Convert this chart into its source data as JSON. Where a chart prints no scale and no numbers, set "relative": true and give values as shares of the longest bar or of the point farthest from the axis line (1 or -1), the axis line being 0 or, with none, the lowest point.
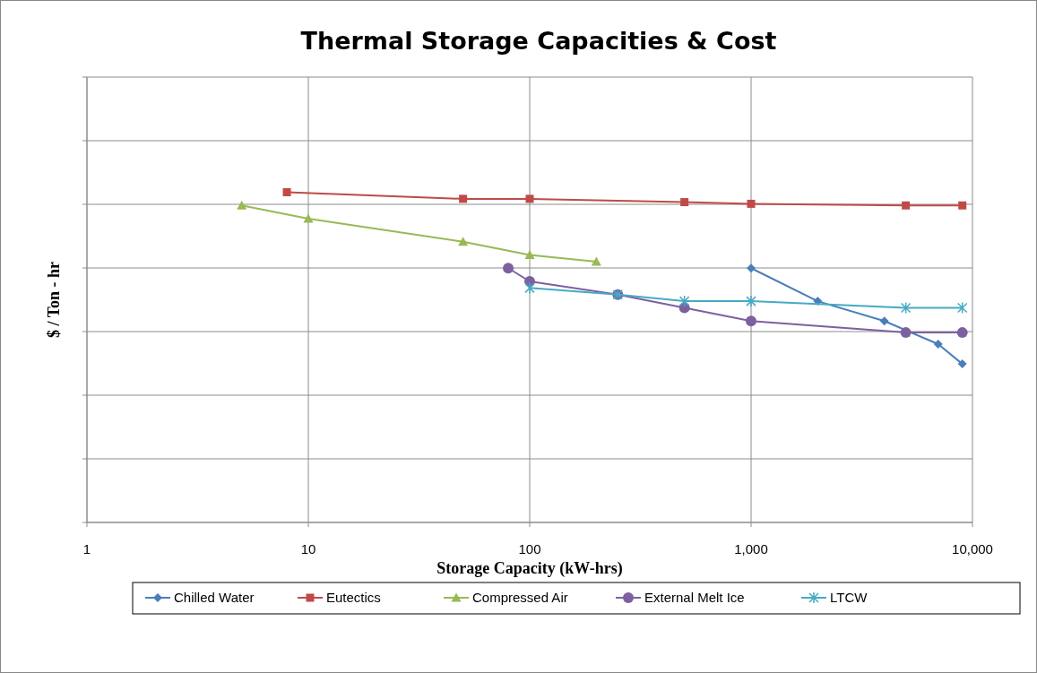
{
  "chart_data": {
    "type": "line",
    "title": "Thermal Storage Capacities & Cost",
    "xlabel": "Storage Capacity (kW-hrs)",
    "ylabel": "$ / Ton - hr",
    "relative": true,
    "log": "x",
    "xlim": [
      1,
      10000
    ],
    "xticks": [
      1,
      10,
      100,
      {
        "value": 1000,
        "label": "1,000"
      },
      {
        "value": 10000,
        "label": "10,000"
      }
    ],
    "grid": true,
    "legend": "bottom",
    "series": [
      {
        "name": "Chilled Water",
        "color": "#4a7ebb",
        "marker": "diamond",
        "x": [
          1000,
          2000,
          4000,
          7000,
          9000
        ],
        "values": [
          0.77,
          0.67,
          0.61,
          0.54,
          0.48
        ]
      },
      {
        "name": "Eutectics",
        "color": "#be4b48",
        "marker": "square",
        "x": [
          8,
          50,
          100,
          500,
          1000,
          5000,
          9000
        ],
        "values": [
          1,
          0.98,
          0.98,
          0.97,
          0.965,
          0.96,
          0.96
        ]
      },
      {
        "name": "Compressed Air",
        "color": "#98b954",
        "marker": "triangle",
        "x": [
          5,
          10,
          50,
          100,
          200
        ],
        "values": [
          0.96,
          0.92,
          0.85,
          0.81,
          0.79
        ]
      },
      {
        "name": "External Melt Ice",
        "color": "#7d60a0",
        "marker": "circle",
        "x": [
          80,
          100,
          250,
          500,
          1000,
          5000,
          9000
        ],
        "values": [
          0.77,
          0.73,
          0.69,
          0.65,
          0.61,
          0.575,
          0.575
        ]
      },
      {
        "name": "LTCW",
        "color": "#46aac5",
        "marker": "cross",
        "x": [
          100,
          250,
          500,
          1000,
          5000,
          9000
        ],
        "values": [
          0.71,
          0.69,
          0.67,
          0.67,
          0.65,
          0.65
        ]
      }
    ]
  }
}
